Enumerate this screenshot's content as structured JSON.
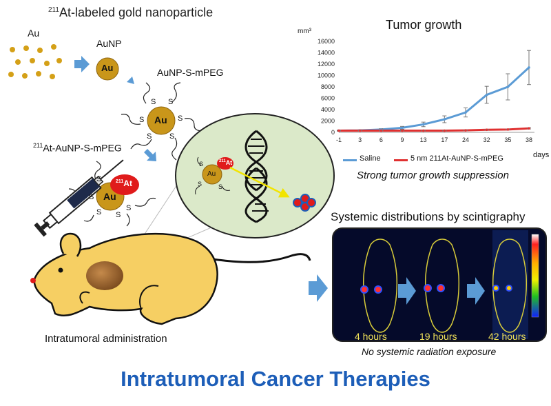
{
  "header": {
    "title_sup": "211",
    "title_text": "At-labeled gold nanoparticle"
  },
  "synthesis": {
    "au_label": "Au",
    "aunp_label": "AuNP",
    "aunp_core_text": "Au",
    "peg_label": "AuNP-S-mPEG",
    "at_peg_sup": "211",
    "at_peg_text": "At-AuNP-S-mPEG",
    "sulfur_symbol": "S",
    "at_badge_sup": "211",
    "at_badge_text": "At"
  },
  "administration": {
    "label": "Intratumoral administration"
  },
  "tumor_chart": {
    "units": "mm³",
    "days_label": "days",
    "caption": "Strong tumor growth suppression"
  },
  "chart_data": {
    "type": "line",
    "title": "Tumor growth",
    "xlabel": "days",
    "ylabel": "mm³",
    "x": [
      -1,
      3,
      6,
      9,
      13,
      17,
      24,
      32,
      35,
      38
    ],
    "ylim": [
      0,
      16000
    ],
    "yticks": [
      0,
      2000,
      4000,
      6000,
      8000,
      10000,
      12000,
      14000,
      16000
    ],
    "series": [
      {
        "name": "Saline",
        "color": "#5b9bd5",
        "values": [
          300,
          350,
          500,
          800,
          1400,
          2300,
          3500,
          6600,
          8000,
          11400
        ],
        "error": [
          100,
          100,
          150,
          250,
          400,
          600,
          800,
          1500,
          2300,
          3000
        ]
      },
      {
        "name": "5 nm 211At-AuNP-S-mPEG",
        "color": "#e03030",
        "values": [
          300,
          300,
          300,
          300,
          300,
          300,
          350,
          450,
          500,
          700
        ],
        "error": [
          50,
          50,
          50,
          50,
          50,
          50,
          60,
          80,
          80,
          100
        ]
      }
    ],
    "legend": "bottom",
    "grid": false
  },
  "scintigraphy": {
    "title": "Systemic distributions by scintigraphy",
    "time_labels": [
      "4 hours",
      "19 hours",
      "42 hours"
    ],
    "caption": "No systemic radiation exposure"
  },
  "inset": {
    "core_text": "Au",
    "badge_sup": "211",
    "badge_text": "At"
  },
  "footer": {
    "heading": "Intratumoral Cancer Therapies"
  },
  "colors": {
    "heading_blue": "#1d5eb8",
    "gold": "#c9961a",
    "at_red": "#e01b1b",
    "arrow_blue": "#5b9bd5",
    "mouse_body": "#f6cf63",
    "inset_fill": "#dbe9c9",
    "panel_dark": "#050a2a"
  }
}
